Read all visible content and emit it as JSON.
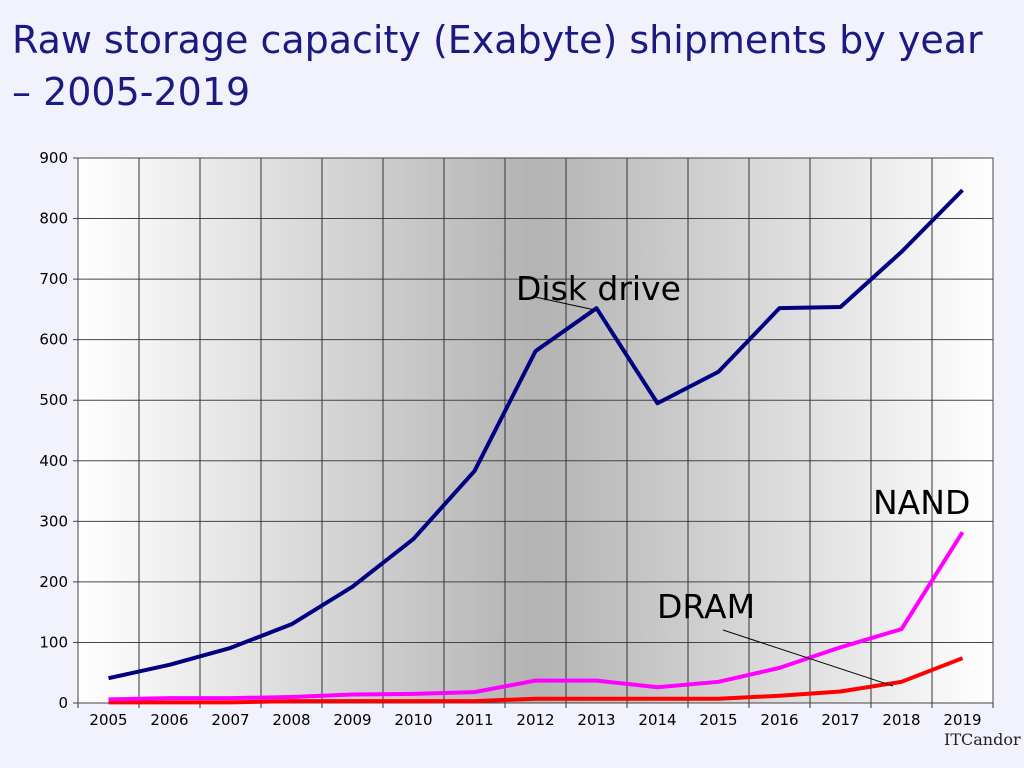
{
  "chart_data": {
    "type": "line",
    "title": "Raw storage capacity (Exabyte) shipments by year – 2005-2019",
    "xlabel": "",
    "ylabel": "",
    "categories": [
      "2005",
      "2006",
      "2007",
      "2008",
      "2009",
      "2010",
      "2011",
      "2012",
      "2013",
      "2014",
      "2015",
      "2016",
      "2017",
      "2018",
      "2019"
    ],
    "ylim": [
      0,
      900
    ],
    "yticks": [
      "0",
      "100",
      "200",
      "300",
      "400",
      "500",
      "600",
      "700",
      "800",
      "900"
    ],
    "grid": true,
    "legend": "none (inline labels)",
    "series": [
      {
        "name": "Disk drive",
        "color": "#000080",
        "values": [
          41,
          63,
          91,
          130,
          192,
          271,
          383,
          581,
          652,
          495,
          547,
          652,
          654,
          745,
          847
        ]
      },
      {
        "name": "NAND",
        "color": "#ff00ff",
        "values": [
          6,
          8,
          8,
          10,
          14,
          15,
          18,
          37,
          37,
          26,
          35,
          58,
          92,
          122,
          282
        ]
      },
      {
        "name": "DRAM",
        "color": "#ff0000",
        "values": [
          1,
          1,
          1,
          3,
          3,
          3,
          3,
          7,
          7,
          7,
          7,
          12,
          19,
          35,
          74
        ]
      }
    ]
  },
  "logo_text": "ITCandor"
}
